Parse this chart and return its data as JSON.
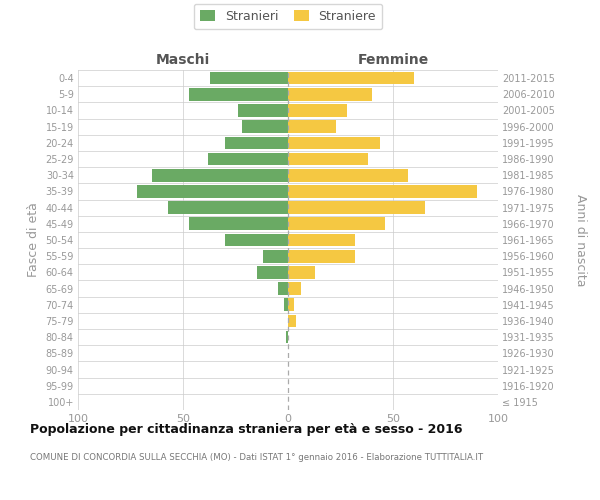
{
  "age_groups": [
    "100+",
    "95-99",
    "90-94",
    "85-89",
    "80-84",
    "75-79",
    "70-74",
    "65-69",
    "60-64",
    "55-59",
    "50-54",
    "45-49",
    "40-44",
    "35-39",
    "30-34",
    "25-29",
    "20-24",
    "15-19",
    "10-14",
    "5-9",
    "0-4"
  ],
  "birth_years": [
    "≤ 1915",
    "1916-1920",
    "1921-1925",
    "1926-1930",
    "1931-1935",
    "1936-1940",
    "1941-1945",
    "1946-1950",
    "1951-1955",
    "1956-1960",
    "1961-1965",
    "1966-1970",
    "1971-1975",
    "1976-1980",
    "1981-1985",
    "1986-1990",
    "1991-1995",
    "1996-2000",
    "2001-2005",
    "2006-2010",
    "2011-2015"
  ],
  "males": [
    0,
    0,
    0,
    0,
    1,
    0,
    2,
    5,
    15,
    12,
    30,
    47,
    57,
    72,
    65,
    38,
    30,
    22,
    24,
    47,
    37
  ],
  "females": [
    0,
    0,
    0,
    0,
    0,
    4,
    3,
    6,
    13,
    32,
    32,
    46,
    65,
    90,
    57,
    38,
    44,
    23,
    28,
    40,
    60
  ],
  "male_color": "#6aaa64",
  "female_color": "#f5c842",
  "male_label": "Stranieri",
  "female_label": "Straniere",
  "title": "Popolazione per cittadinanza straniera per età e sesso - 2016",
  "subtitle": "COMUNE DI CONCORDIA SULLA SECCHIA (MO) - Dati ISTAT 1° gennaio 2016 - Elaborazione TUTTITALIA.IT",
  "header_left": "Maschi",
  "header_right": "Femmine",
  "ylabel_left": "Fasce di età",
  "ylabel_right": "Anni di nascita",
  "xlim": 100,
  "bg_color": "#ffffff",
  "grid_color": "#cccccc",
  "label_color": "#999999",
  "header_color": "#555555",
  "title_color": "#111111",
  "subtitle_color": "#777777"
}
